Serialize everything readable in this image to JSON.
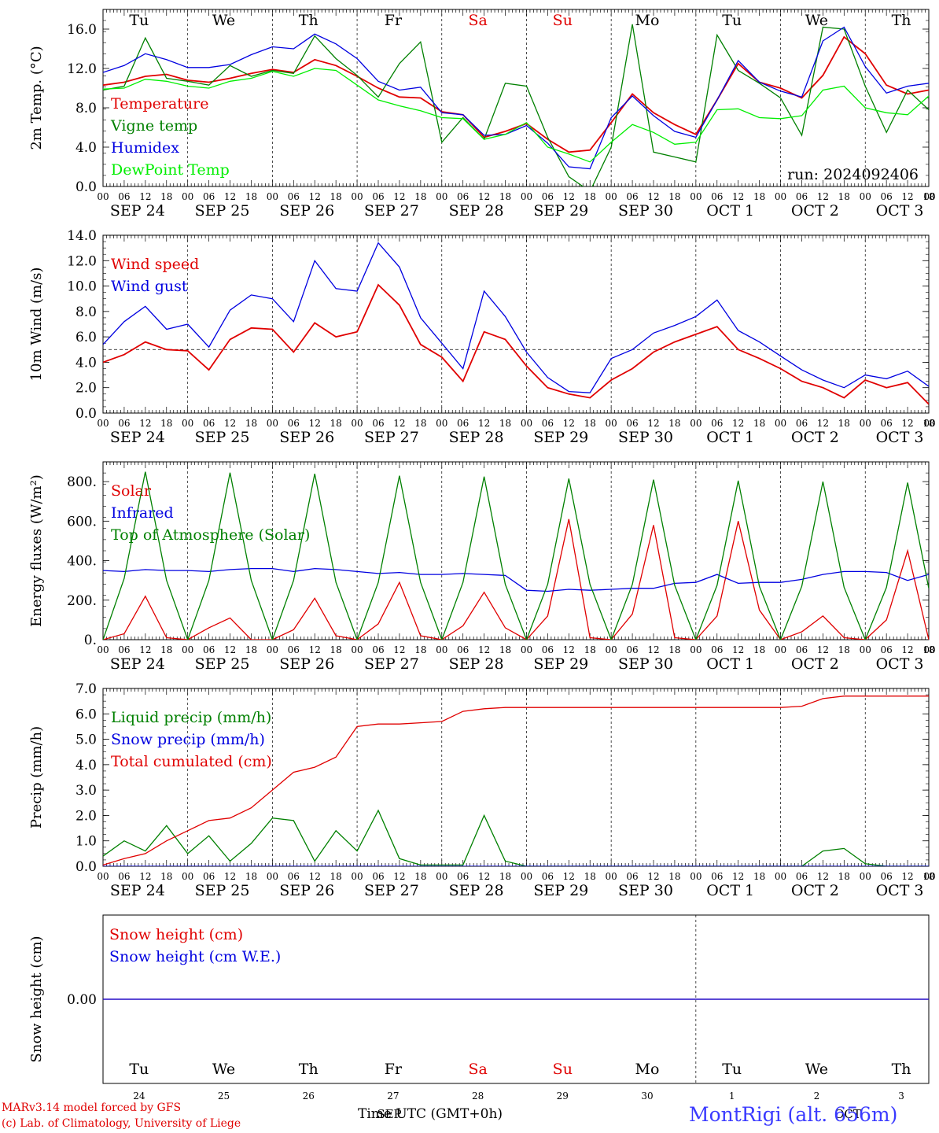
{
  "chart_data": [
    {
      "type": "line",
      "panel": "temperature",
      "ylabel": "2m Temp. (°C)",
      "ylim": [
        0,
        18
      ],
      "yticks": [
        "0.0",
        "4.0",
        "8.0",
        "12.0",
        "16.0"
      ],
      "x_unit": "hours since 2024-09-24 00 UTC",
      "x": [
        0,
        6,
        12,
        18,
        24,
        30,
        36,
        42,
        48,
        54,
        60,
        66,
        72,
        78,
        84,
        90,
        96,
        102,
        108,
        114,
        120,
        126,
        132,
        138,
        144,
        150,
        156,
        162,
        168,
        174,
        180,
        186,
        192,
        198,
        204,
        210,
        216,
        222,
        228,
        234
      ],
      "annotation": "run: 2024092406",
      "weekday_labels": [
        "Tu",
        "We",
        "Th",
        "Fr",
        "Sa",
        "Su",
        "Mo",
        "Tu",
        "We",
        "Th"
      ],
      "weekday_colors": [
        "#000000",
        "#000000",
        "#000000",
        "#000000",
        "#e00000",
        "#e00000",
        "#000000",
        "#000000",
        "#000000",
        "#000000"
      ],
      "date_labels": [
        "SEP 24",
        "SEP 25",
        "SEP 26",
        "SEP 27",
        "SEP 28",
        "SEP 29",
        "SEP 30",
        "OCT  1",
        "OCT  2",
        "OCT  3"
      ],
      "hour_ticks": [
        "00",
        "06",
        "12",
        "18"
      ],
      "reference_line": null,
      "series": [
        {
          "name": "Temperature",
          "color": "#e00000",
          "values": [
            10.3,
            10.6,
            11.2,
            11.4,
            10.8,
            10.6,
            11.0,
            11.5,
            11.9,
            11.6,
            12.9,
            12.3,
            11.2,
            10.0,
            9.1,
            9.0,
            7.6,
            7.3,
            5.0,
            5.6,
            6.4,
            4.8,
            3.5,
            3.7,
            6.5,
            9.4,
            7.5,
            6.3,
            5.3,
            8.8,
            12.5,
            10.6,
            10.0,
            9.0,
            11.3,
            15.2,
            13.5,
            10.3,
            9.4,
            9.8
          ]
        },
        {
          "name": "Vigne temp",
          "color": "#008000",
          "values": [
            9.8,
            10.2,
            15.1,
            11.0,
            10.7,
            10.3,
            12.3,
            11.2,
            11.8,
            11.5,
            15.3,
            13.0,
            11.3,
            9.1,
            12.5,
            14.7,
            4.5,
            7.0,
            4.8,
            10.5,
            10.2,
            5.0,
            1.0,
            -0.5,
            4.0,
            16.5,
            3.5,
            3.0,
            2.5,
            15.4,
            11.8,
            10.5,
            9.0,
            5.2,
            16.2,
            16.0,
            10.2,
            5.5,
            9.8,
            7.8
          ]
        },
        {
          "name": "Humidex",
          "color": "#0000e0",
          "values": [
            11.6,
            12.3,
            13.5,
            12.9,
            12.1,
            12.1,
            12.4,
            13.4,
            14.2,
            14.0,
            15.5,
            14.5,
            13.0,
            10.7,
            9.8,
            10.1,
            7.5,
            7.3,
            5.2,
            5.3,
            6.2,
            4.4,
            2.0,
            1.8,
            7.0,
            9.2,
            7.2,
            5.6,
            5.0,
            8.8,
            12.8,
            10.6,
            9.7,
            9.1,
            14.8,
            16.2,
            12.2,
            9.5,
            10.2,
            10.5
          ]
        },
        {
          "name": "DewPoint Temp",
          "color": "#00ee00",
          "values": [
            9.9,
            10.0,
            10.9,
            10.7,
            10.2,
            10.0,
            10.7,
            11.0,
            11.7,
            11.2,
            12.0,
            11.8,
            10.3,
            8.8,
            8.2,
            7.7,
            7.0,
            6.9,
            4.8,
            5.3,
            6.5,
            4.0,
            3.3,
            2.5,
            4.5,
            6.3,
            5.5,
            4.3,
            4.5,
            7.8,
            7.9,
            7.0,
            6.9,
            7.2,
            9.8,
            10.2,
            8.0,
            7.5,
            7.3,
            9.2
          ]
        }
      ]
    },
    {
      "type": "line",
      "panel": "wind",
      "ylabel": "10m Wind (m/s)",
      "ylim": [
        0,
        14
      ],
      "yticks": [
        "0.0",
        "2.0",
        "4.0",
        "6.0",
        "8.0",
        "10.0",
        "12.0",
        "14.0"
      ],
      "x_unit": "hours since 2024-09-24 00 UTC",
      "x": [
        0,
        6,
        12,
        18,
        24,
        30,
        36,
        42,
        48,
        54,
        60,
        66,
        72,
        78,
        84,
        90,
        96,
        102,
        108,
        114,
        120,
        126,
        132,
        138,
        144,
        150,
        156,
        162,
        168,
        174,
        180,
        186,
        192,
        198,
        204,
        210,
        216,
        222,
        228,
        234
      ],
      "weekday_labels": [],
      "weekday_colors": [],
      "date_labels": [
        "SEP 24",
        "SEP 25",
        "SEP 26",
        "SEP 27",
        "SEP 28",
        "SEP 29",
        "SEP 30",
        "OCT  1",
        "OCT  2",
        "OCT  3"
      ],
      "hour_ticks": [
        "00",
        "06",
        "12",
        "18"
      ],
      "reference_line": 5.0,
      "series": [
        {
          "name": "Wind speed",
          "color": "#e00000",
          "values": [
            4.0,
            4.6,
            5.6,
            5.0,
            4.9,
            3.4,
            5.8,
            6.7,
            6.6,
            4.8,
            7.1,
            6.0,
            6.4,
            10.1,
            8.5,
            5.4,
            4.4,
            2.5,
            6.4,
            5.8,
            3.7,
            2.0,
            1.5,
            1.2,
            2.6,
            3.5,
            4.8,
            5.6,
            6.2,
            6.8,
            5.0,
            4.3,
            3.5,
            2.5,
            2.0,
            1.2,
            2.6,
            2.0,
            2.4,
            0.7
          ]
        },
        {
          "name": "Wind gust",
          "color": "#0000e0",
          "values": [
            5.4,
            7.2,
            8.4,
            6.6,
            7.0,
            5.2,
            8.1,
            9.3,
            9.0,
            7.2,
            12.0,
            9.8,
            9.6,
            13.4,
            11.5,
            7.5,
            5.5,
            3.5,
            9.6,
            7.6,
            4.8,
            2.8,
            1.7,
            1.6,
            4.3,
            5.0,
            6.3,
            6.9,
            7.6,
            8.9,
            6.5,
            5.6,
            4.5,
            3.4,
            2.6,
            2.0,
            3.0,
            2.7,
            3.3,
            2.1
          ]
        }
      ]
    },
    {
      "type": "line",
      "panel": "energy",
      "ylabel": "Energy fluxes (W/m²)",
      "ylim": [
        0,
        900
      ],
      "yticks": [
        "0.",
        "200.",
        "400.",
        "600.",
        "800."
      ],
      "x_unit": "hours since 2024-09-24 00 UTC",
      "x": [
        0,
        6,
        12,
        18,
        24,
        30,
        36,
        42,
        48,
        54,
        60,
        66,
        72,
        78,
        84,
        90,
        96,
        102,
        108,
        114,
        120,
        126,
        132,
        138,
        144,
        150,
        156,
        162,
        168,
        174,
        180,
        186,
        192,
        198,
        204,
        210,
        216,
        222,
        228,
        234
      ],
      "weekday_labels": [],
      "weekday_colors": [],
      "date_labels": [
        "SEP 24",
        "SEP 25",
        "SEP 26",
        "SEP 27",
        "SEP 28",
        "SEP 29",
        "SEP 30",
        "OCT  1",
        "OCT  2",
        "OCT  3"
      ],
      "hour_ticks": [
        "00",
        "06",
        "12",
        "18"
      ],
      "reference_line": null,
      "series": [
        {
          "name": "Solar",
          "color": "#e00000",
          "values": [
            0,
            30,
            220,
            10,
            0,
            60,
            110,
            0,
            0,
            50,
            210,
            20,
            0,
            80,
            290,
            20,
            0,
            70,
            240,
            60,
            0,
            120,
            610,
            10,
            0,
            130,
            580,
            10,
            0,
            120,
            600,
            150,
            0,
            40,
            120,
            10,
            0,
            100,
            450,
            0
          ]
        },
        {
          "name": "Infrared",
          "color": "#0000e0",
          "values": [
            350,
            345,
            355,
            350,
            350,
            345,
            355,
            360,
            360,
            345,
            360,
            355,
            345,
            335,
            340,
            330,
            330,
            335,
            330,
            325,
            250,
            245,
            255,
            250,
            255,
            260,
            260,
            285,
            290,
            330,
            285,
            290,
            290,
            305,
            330,
            345,
            345,
            340,
            300,
            330
          ]
        },
        {
          "name": "Top of Atmosphere (Solar)",
          "color": "#008000",
          "values": [
            0,
            310,
            850,
            300,
            0,
            300,
            845,
            300,
            0,
            300,
            840,
            290,
            0,
            290,
            830,
            290,
            0,
            290,
            825,
            280,
            0,
            280,
            815,
            280,
            0,
            280,
            810,
            275,
            0,
            275,
            805,
            270,
            0,
            270,
            800,
            265,
            0,
            265,
            795,
            260
          ]
        }
      ]
    },
    {
      "type": "line",
      "panel": "precip",
      "ylabel": "Precip (mm/h)",
      "ylim": [
        0,
        7
      ],
      "yticks": [
        "0.0",
        "1.0",
        "2.0",
        "3.0",
        "4.0",
        "5.0",
        "6.0",
        "7.0"
      ],
      "x_unit": "hours since 2024-09-24 00 UTC",
      "x": [
        0,
        6,
        12,
        18,
        24,
        30,
        36,
        42,
        48,
        54,
        60,
        66,
        72,
        78,
        84,
        90,
        96,
        102,
        108,
        114,
        120,
        126,
        132,
        138,
        144,
        150,
        156,
        162,
        168,
        174,
        180,
        186,
        192,
        198,
        204,
        210,
        216,
        222,
        228,
        234
      ],
      "weekday_labels": [],
      "weekday_colors": [],
      "date_labels": [
        "SEP 24",
        "SEP 25",
        "SEP 26",
        "SEP 27",
        "SEP 28",
        "SEP 29",
        "SEP 30",
        "OCT  1",
        "OCT  2",
        "OCT  3"
      ],
      "hour_ticks": [
        "00",
        "06",
        "12",
        "18"
      ],
      "reference_line": null,
      "series": [
        {
          "name": "Liquid precip (mm/h)",
          "color": "#008000",
          "values": [
            0.4,
            1.0,
            0.6,
            1.6,
            0.5,
            1.2,
            0.2,
            0.9,
            1.9,
            1.8,
            0.2,
            1.4,
            0.6,
            2.2,
            0.3,
            0.05,
            0.05,
            0.05,
            2.0,
            0.2,
            0.0,
            0.0,
            0.0,
            0.0,
            0.0,
            0.0,
            0.0,
            0.0,
            0.0,
            0.0,
            0.0,
            0.0,
            0.0,
            0.0,
            0.6,
            0.7,
            0.1,
            0.0,
            0.0,
            0.0
          ]
        },
        {
          "name": "Snow precip (mm/h)",
          "color": "#0000e0",
          "values": [
            0,
            0,
            0,
            0,
            0,
            0,
            0,
            0,
            0,
            0,
            0,
            0,
            0,
            0,
            0,
            0,
            0,
            0,
            0,
            0,
            0,
            0,
            0,
            0,
            0,
            0,
            0,
            0,
            0,
            0,
            0,
            0,
            0,
            0,
            0,
            0,
            0,
            0,
            0,
            0
          ]
        },
        {
          "name": "Total cumulated (cm)",
          "color": "#e00000",
          "values": [
            0.05,
            0.3,
            0.5,
            1.0,
            1.4,
            1.8,
            1.9,
            2.3,
            3.0,
            3.7,
            3.9,
            4.3,
            5.5,
            5.6,
            5.6,
            5.65,
            5.7,
            6.1,
            6.2,
            6.25,
            6.25,
            6.25,
            6.25,
            6.25,
            6.25,
            6.25,
            6.25,
            6.25,
            6.25,
            6.25,
            6.25,
            6.25,
            6.25,
            6.3,
            6.6,
            6.7,
            6.7,
            6.7,
            6.7,
            6.7
          ]
        }
      ]
    },
    {
      "type": "line",
      "panel": "snow",
      "ylabel": "Snow height (cm)",
      "ytick": "0.00",
      "x_unit": "hours since 2024-09-24 00 UTC",
      "x": [
        0,
        234
      ],
      "weekday_labels": [
        "Tu",
        "We",
        "Th",
        "Fr",
        "Sa",
        "Su",
        "Mo",
        "Tu",
        "We",
        "Th"
      ],
      "weekday_colors": [
        "#000000",
        "#000000",
        "#000000",
        "#000000",
        "#e00000",
        "#e00000",
        "#000000",
        "#000000",
        "#000000",
        "#000000"
      ],
      "day_numbers": [
        "24",
        "25",
        "26",
        "27",
        "28",
        "29",
        "30",
        "1",
        "2",
        "3"
      ],
      "month_labels": [
        "SEP",
        "OCT"
      ],
      "series": [
        {
          "name": "Snow height (cm)",
          "color": "#e00000",
          "values": [
            0,
            0
          ]
        },
        {
          "name": "Snow height (cm W.E.)",
          "color": "#0000e0",
          "values": [
            0,
            0
          ]
        }
      ]
    }
  ],
  "footer": {
    "credit_line1": "MARv3.14 model forced by GFS",
    "credit_line2": "(c) Lab. of Climatology, University of Liege",
    "xlabel": "Time UTC (GMT+0h)",
    "station": "MontRigi (alt. 656m)"
  },
  "colors": {
    "red": "#e00000",
    "green": "#008000",
    "blue": "#0000e0",
    "lightgreen": "#00ee00",
    "station": "#3a3aff"
  }
}
